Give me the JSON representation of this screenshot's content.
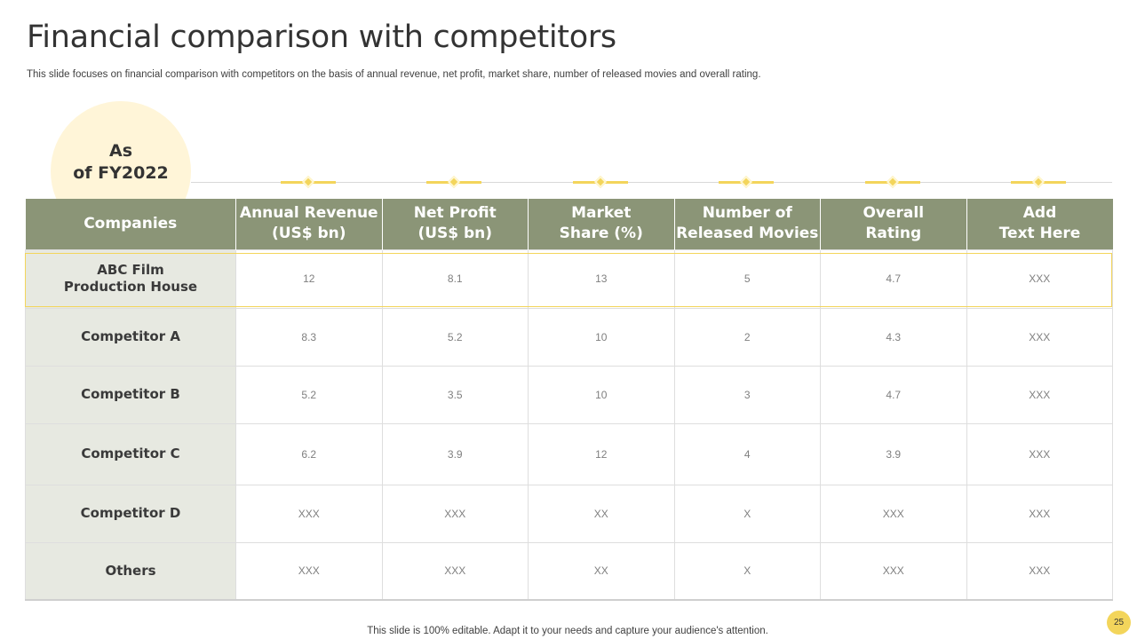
{
  "slide": {
    "title": "Financial comparison with competitors",
    "subtitle": "This slide focuses on financial comparison with competitors on the basis of annual revenue, net profit, market share, number of released movies and overall rating.",
    "badge_line1": "As",
    "badge_line2": "of FY2022",
    "footer": "This slide is 100% editable. Adapt it to your needs and capture your audience's attention.",
    "page_number": "25"
  },
  "colors": {
    "header_bg": "#8b9577",
    "accent": "#f3d55b",
    "company_col_bg": "#e7e9e1",
    "badge_bg": "#fff5d8"
  },
  "table": {
    "headers": [
      {
        "line1": "Companies",
        "line2": ""
      },
      {
        "line1": "Annual Revenue",
        "line2": "(US$ bn)"
      },
      {
        "line1": "Net Profit",
        "line2": "(US$ bn)"
      },
      {
        "line1": "Market",
        "line2": "Share (%)"
      },
      {
        "line1": "Number of",
        "line2": "Released Movies"
      },
      {
        "line1": "Overall",
        "line2": "Rating"
      },
      {
        "line1": "Add",
        "line2": "Text Here"
      }
    ],
    "rows": [
      {
        "company_line1": "ABC Film",
        "company_line2": "Production House",
        "cells": [
          "12",
          "8.1",
          "13",
          "5",
          "4.7",
          "XXX"
        ]
      },
      {
        "company_line1": "Competitor A",
        "company_line2": "",
        "cells": [
          "8.3",
          "5.2",
          "10",
          "2",
          "4.3",
          "XXX"
        ]
      },
      {
        "company_line1": "Competitor B",
        "company_line2": "",
        "cells": [
          "5.2",
          "3.5",
          "10",
          "3",
          "4.7",
          "XXX"
        ]
      },
      {
        "company_line1": "Competitor C",
        "company_line2": "",
        "cells": [
          "6.2",
          "3.9",
          "12",
          "4",
          "3.9",
          "XXX"
        ]
      },
      {
        "company_line1": "Competitor D",
        "company_line2": "",
        "cells": [
          "XXX",
          "XXX",
          "XX",
          "X",
          "XXX",
          "XXX"
        ]
      },
      {
        "company_line1": "Others",
        "company_line2": "",
        "cells": [
          "XXX",
          "XXX",
          "XX",
          "X",
          "XXX",
          "XXX"
        ]
      }
    ]
  }
}
